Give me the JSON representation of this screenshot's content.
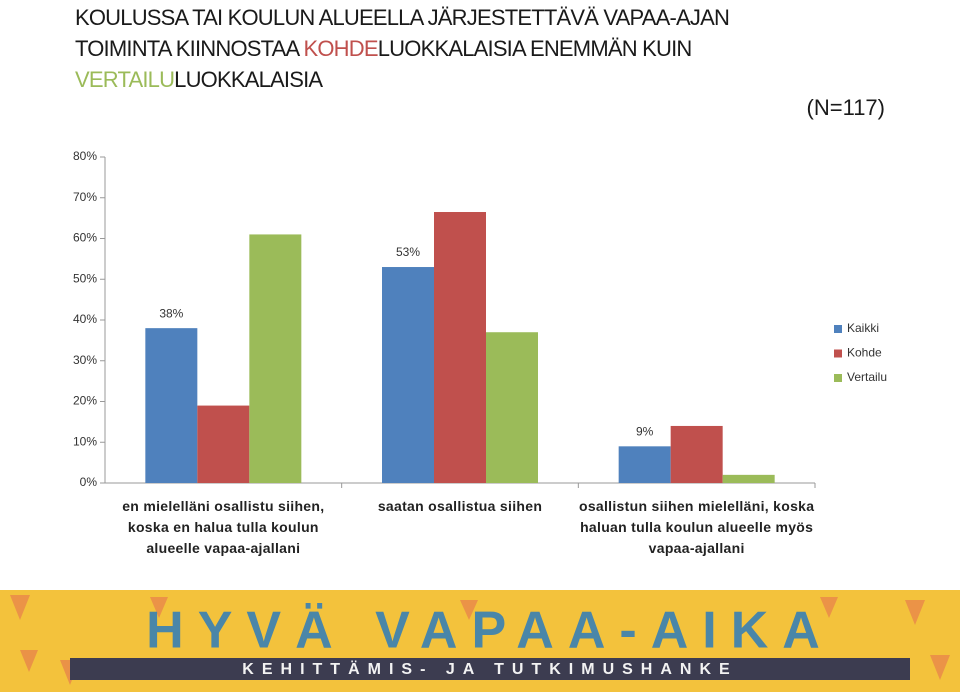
{
  "chart_data": {
    "type": "bar",
    "title": [
      {
        "text": "KOULUSSA TAI KOULUN ALUEELLA JÄRJESTETTÄVÄ VAPAA-AJAN TOIMINTA KIINNOSTAA ",
        "color": "#1a1a1a"
      },
      {
        "text": "KOHDE",
        "color": "#c0504d"
      },
      {
        "text": "LUOKKALAISIA ENEMMÄN KUIN ",
        "color": "#1a1a1a"
      },
      {
        "text": "VERTAILU",
        "color": "#9bbb59"
      },
      {
        "text": "LUOKKALAISIA",
        "color": "#1a1a1a"
      }
    ],
    "subtitle": "(N=117)",
    "categories": [
      "en mielelläni osallistu siihen, koska en halua tulla koulun alueelle vapaa-ajallani",
      "saatan osallistua siihen",
      "osallistun siihen mielelläni, koska haluan tulla koulun alueelle myös vapaa-ajallani"
    ],
    "series": [
      {
        "name": "Kaikki",
        "color": "#4f81bd",
        "values": [
          38,
          53,
          9
        ],
        "value_labels": [
          "38%",
          "53%",
          "9%"
        ]
      },
      {
        "name": "Kohde",
        "color": "#c0504d",
        "values": [
          19,
          66.5,
          14
        ]
      },
      {
        "name": "Vertailu",
        "color": "#9bbb59",
        "values": [
          61,
          37,
          2
        ]
      }
    ],
    "ylim": [
      0,
      80
    ],
    "yticks": [
      {
        "value": 0,
        "label": "0%"
      },
      {
        "value": 10,
        "label": "10%"
      },
      {
        "value": 20,
        "label": "20%"
      },
      {
        "value": 30,
        "label": "30%"
      },
      {
        "value": 40,
        "label": "40%"
      },
      {
        "value": 50,
        "label": "50%"
      },
      {
        "value": 60,
        "label": "60%"
      },
      {
        "value": 70,
        "label": "70%"
      },
      {
        "value": 80,
        "label": "80%"
      }
    ],
    "legend": "right",
    "grid": false
  },
  "banner": {
    "title": "HYVÄ VAPAA-AIKA",
    "subtitle": "KEHITTÄMIS- JA TUTKIMUSHANKE"
  }
}
